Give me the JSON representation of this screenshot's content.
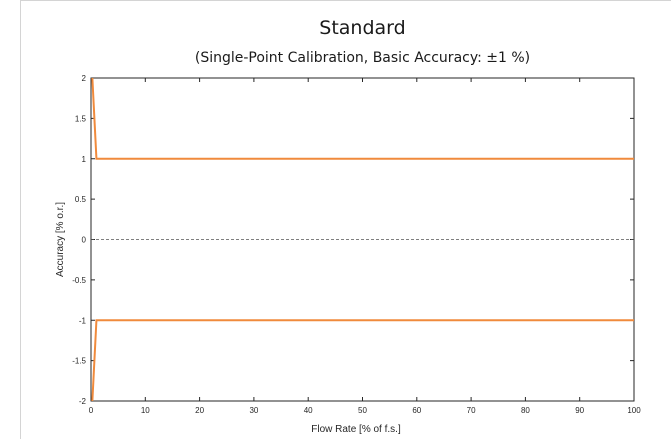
{
  "chart_data": {
    "type": "line",
    "title": "Standard",
    "subtitle": "(Single-Point Calibration, Basic Accuracy: ±1 %)",
    "xlabel": "Flow Rate [% of f.s.]",
    "ylabel": "Accuracy [% o.r.]",
    "xlim": [
      0,
      100
    ],
    "ylim": [
      -2,
      2
    ],
    "xticks": [
      0,
      10,
      20,
      30,
      40,
      50,
      60,
      70,
      80,
      90,
      100
    ],
    "yticks": [
      2,
      1.5,
      1,
      0.5,
      0,
      -0.5,
      -1,
      -1.5,
      -2
    ],
    "xtick_labels": [
      "0",
      "10",
      "20",
      "30",
      "40",
      "50",
      "60",
      "70",
      "80",
      "90",
      "100"
    ],
    "ytick_labels": [
      "2",
      "1.5",
      "1",
      "0.5",
      "0",
      "-0.5",
      "-1",
      "-1.5",
      "-2"
    ],
    "grid": false,
    "series": [
      {
        "color": "#f08a3c",
        "x": [
          0.25,
          1,
          100
        ],
        "y": [
          2.0,
          1.0,
          1.0
        ]
      },
      {
        "color": "#f08a3c",
        "x": [
          0.25,
          1,
          100
        ],
        "y": [
          -2.0,
          -1.0,
          -1.0
        ]
      }
    ],
    "reference_line": {
      "y": 0,
      "style": "dashed",
      "color": "#555555"
    }
  }
}
